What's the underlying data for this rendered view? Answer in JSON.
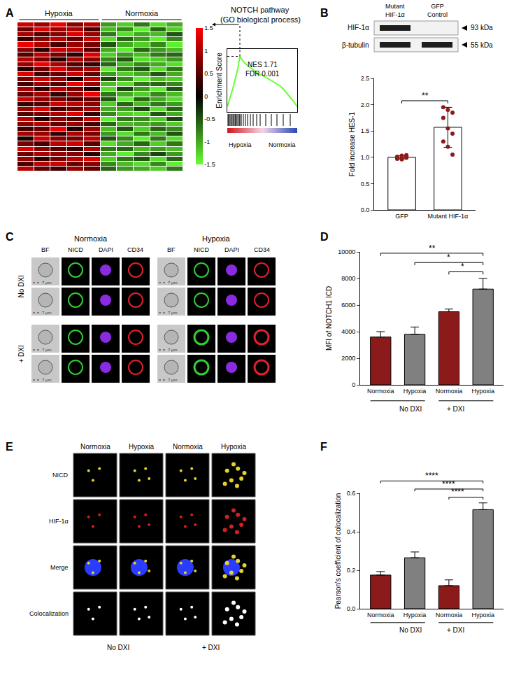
{
  "panel_labels": [
    "A",
    "B",
    "C",
    "D",
    "E",
    "F"
  ],
  "chart_data": [
    {
      "panel": "A",
      "type": "heatmap",
      "title": "NOTCH pathway",
      "subtitle": "(GO biological process)",
      "groups": [
        {
          "label": "Hypoxia",
          "count": 5
        },
        {
          "label": "Normoxia",
          "count": 5
        }
      ],
      "cells": [
        [
          1.2,
          0.9,
          1.4,
          0.8,
          1.1,
          -0.9,
          -1.2,
          -0.7,
          -1.3,
          -1.0
        ],
        [
          0.6,
          1.3,
          0.9,
          1.0,
          0.4,
          -1.1,
          -0.8,
          -1.4,
          -0.6,
          -1.2
        ],
        [
          1.0,
          0.5,
          0.8,
          1.3,
          0.9,
          -0.7,
          -1.3,
          -1.0,
          -1.1,
          -0.5
        ],
        [
          0.3,
          0.8,
          1.1,
          0.6,
          1.2,
          -1.3,
          -0.6,
          -0.9,
          -1.4,
          -0.8
        ],
        [
          1.4,
          1.0,
          0.4,
          0.9,
          0.7,
          -0.5,
          -1.0,
          -1.2,
          -0.8,
          -1.4
        ],
        [
          0.8,
          0.2,
          1.2,
          1.1,
          0.5,
          -1.0,
          -1.4,
          -0.6,
          -0.9,
          -1.1
        ],
        [
          0.5,
          1.1,
          0.7,
          0.3,
          1.3,
          -1.2,
          -0.9,
          -1.1,
          -0.7,
          -0.6
        ],
        [
          1.1,
          0.7,
          0.2,
          1.0,
          0.8,
          -0.8,
          -0.5,
          -1.3,
          -1.2,
          -0.9
        ],
        [
          0.9,
          1.4,
          1.0,
          0.5,
          0.3,
          -0.6,
          -1.1,
          -0.8,
          -1.0,
          -1.3
        ],
        [
          0.2,
          0.6,
          1.3,
          0.8,
          1.0,
          -1.4,
          -0.7,
          -0.5,
          -1.3,
          -0.7
        ],
        [
          1.3,
          0.4,
          0.6,
          1.2,
          0.6,
          -0.9,
          -1.2,
          -1.0,
          -0.5,
          -1.0
        ],
        [
          0.7,
          1.2,
          0.9,
          0.1,
          1.1,
          -0.4,
          -0.8,
          -1.4,
          -1.1,
          -1.2
        ],
        [
          0.4,
          0.9,
          0.5,
          1.4,
          0.9,
          -1.1,
          -1.3,
          -0.7,
          -0.6,
          -0.8
        ],
        [
          1.0,
          0.3,
          1.1,
          0.7,
          0.2,
          -1.3,
          -0.4,
          -0.9,
          -1.4,
          -0.5
        ],
        [
          0.6,
          1.0,
          0.3,
          0.9,
          1.4,
          -0.7,
          -1.0,
          -1.2,
          -0.8,
          -1.1
        ],
        [
          1.2,
          0.8,
          0.7,
          0.4,
          0.6,
          -0.5,
          -1.4,
          -0.6,
          -1.0,
          -1.3
        ],
        [
          0.3,
          0.5,
          1.2,
          1.1,
          0.8,
          -1.2,
          -0.6,
          -1.1,
          -0.7,
          -0.9
        ],
        [
          0.9,
          1.3,
          0.4,
          0.6,
          1.0,
          -1.0,
          -0.9,
          -0.4,
          -1.3,
          -0.6
        ],
        [
          0.5,
          0.7,
          1.0,
          1.3,
          0.3,
          -0.8,
          -1.2,
          -1.3,
          -0.5,
          -1.0
        ],
        [
          1.1,
          0.2,
          0.8,
          0.5,
          1.2,
          -1.4,
          -0.7,
          -0.8,
          -1.2,
          -0.4
        ],
        [
          0.8,
          1.1,
          0.6,
          0.9,
          0.4,
          -0.6,
          -1.1,
          -1.0,
          -0.9,
          -1.2
        ],
        [
          0.4,
          0.6,
          1.4,
          0.2,
          0.9,
          -1.1,
          -0.5,
          -1.2,
          -0.6,
          -0.8
        ],
        [
          1.0,
          0.9,
          0.3,
          1.0,
          0.7,
          -0.9,
          -1.3,
          -0.7,
          -1.1,
          -0.5
        ],
        [
          0.2,
          1.2,
          0.8,
          0.7,
          1.1,
          -0.5,
          -0.8,
          -1.4,
          -0.7,
          -1.3
        ],
        [
          0.7,
          0.4,
          1.1,
          1.2,
          0.5,
          -1.3,
          -1.0,
          -0.6,
          -1.2,
          -0.7
        ],
        [
          1.3,
          0.8,
          0.5,
          0.3,
          1.0,
          -0.7,
          -0.6,
          -1.1,
          -0.9,
          -1.1
        ],
        [
          0.6,
          1.0,
          0.9,
          0.8,
          0.2,
          -1.0,
          -1.4,
          -0.8,
          -0.4,
          -0.9
        ],
        [
          0.9,
          0.3,
          0.7,
          1.1,
          1.3,
          -1.2,
          -0.7,
          -0.5,
          -1.3,
          -0.6
        ],
        [
          0.4,
          1.1,
          1.2,
          0.6,
          0.8,
          -0.8,
          -1.1,
          -1.3,
          -0.8,
          -1.4
        ],
        [
          1.1,
          0.6,
          0.4,
          0.9,
          0.6,
          -0.6,
          -0.9,
          -1.0,
          -1.2,
          -0.7
        ]
      ],
      "colorbar": {
        "range": [
          -1.5,
          1.5
        ],
        "ticks": [
          1.5,
          1,
          0.5,
          0,
          -0.5,
          -1,
          -1.5
        ],
        "colors": [
          "#66ff33",
          "#000000",
          "#ff0000"
        ]
      }
    },
    {
      "panel": "A",
      "type": "line",
      "ylabel": "Enrichment Score",
      "x": [
        0,
        3,
        6,
        9,
        12,
        15,
        18,
        22,
        26,
        30,
        35,
        40,
        45,
        50,
        55,
        60,
        65,
        70,
        75,
        80,
        85,
        90,
        95,
        100
      ],
      "values": [
        0,
        0.06,
        0.13,
        0.2,
        0.28,
        0.36,
        0.48,
        0.44,
        0.41,
        0.39,
        0.36,
        0.34,
        0.31,
        0.3,
        0.28,
        0.26,
        0.24,
        0.22,
        0.2,
        0.17,
        0.13,
        0.09,
        0.05,
        0
      ],
      "color": "#66ff33",
      "xlim": [
        0,
        100
      ],
      "ylim": [
        -0.05,
        0.55
      ],
      "tick_labels": false,
      "annotations": [
        "NES 1.71",
        "FDR 0.001"
      ],
      "hits": [
        1,
        2,
        3,
        5,
        6,
        8,
        9,
        11,
        12,
        13,
        15,
        17,
        18,
        20,
        23,
        26,
        29,
        33,
        37,
        42,
        47,
        55,
        63,
        71,
        80,
        90
      ],
      "xlabels": [
        "Hypoxia",
        "Normoxia"
      ]
    },
    {
      "panel": "B",
      "type": "bar",
      "categories": [
        "GFP",
        "Mutant HIF-1α"
      ],
      "values": [
        1.0,
        1.57
      ],
      "error": [
        0.03,
        0.38
      ],
      "points": {
        "values": [
          [
            1.0,
            0.98,
            1.02,
            0.97,
            1.03,
            0.99,
            1.01,
            0.96,
            1.04
          ],
          [
            1.95,
            1.9,
            1.85,
            1.75,
            1.55,
            1.45,
            1.3,
            1.2,
            1.05
          ]
        ],
        "color": "#8b1a1a",
        "marker": "circle"
      },
      "color": "#ffffff",
      "ylabel": "Fold increase HES-1",
      "ylim": [
        0,
        2.5
      ],
      "yticks": [
        {
          "value": 0,
          "label": "0.0"
        },
        0.5,
        {
          "value": 1,
          "label": "1.0"
        },
        1.5,
        {
          "value": 2,
          "label": "2.0"
        },
        2.5
      ],
      "grid": false,
      "comparisons": [
        {
          "from": 0,
          "to": 1,
          "label": "**"
        }
      ]
    },
    {
      "panel": "D",
      "type": "bar",
      "categories": [
        "Normoxia",
        "Hypoxia",
        "Normoxia",
        "Hypoxia"
      ],
      "groups": [
        {
          "label": "No DXI",
          "count": 2
        },
        {
          "label": "+ DXI",
          "count": 2
        }
      ],
      "values": [
        3600,
        3800,
        5500,
        7200
      ],
      "error": [
        400,
        550,
        200,
        800
      ],
      "colors": [
        "#8b1a1a",
        "#808080",
        "#8b1a1a",
        "#808080"
      ],
      "ylabel": "MFI of NOTCH1 ICD",
      "ylim": [
        0,
        10000
      ],
      "yticks": [
        0,
        2000,
        4000,
        6000,
        8000,
        10000
      ],
      "grid": false,
      "comparisons": [
        {
          "from": 2,
          "to": 3,
          "label": "*"
        },
        {
          "from": 1,
          "to": 3,
          "label": "*"
        },
        {
          "from": 0,
          "to": 3,
          "label": "**"
        }
      ]
    },
    {
      "panel": "F",
      "type": "bar",
      "categories": [
        "Normoxia",
        "Hypoxia",
        "Normoxia",
        "Hypoxia"
      ],
      "groups": [
        {
          "label": "No DXI",
          "count": 2
        },
        {
          "label": "+ DXI",
          "count": 2
        }
      ],
      "values": [
        0.175,
        0.265,
        0.12,
        0.515
      ],
      "error": [
        0.018,
        0.03,
        0.03,
        0.035
      ],
      "colors": [
        "#8b1a1a",
        "#808080",
        "#8b1a1a",
        "#808080"
      ],
      "ylabel": "Pearson's coefficient of colocalization",
      "ylim": [
        0,
        0.6
      ],
      "yticks": [
        {
          "value": 0,
          "label": "0.0"
        },
        0.2,
        0.4,
        0.6
      ],
      "grid": false,
      "comparisons": [
        {
          "from": 2,
          "to": 3,
          "label": "****"
        },
        {
          "from": 1,
          "to": 3,
          "label": "****"
        },
        {
          "from": 0,
          "to": 3,
          "label": "****"
        }
      ]
    }
  ],
  "blot": {
    "panel": "B",
    "lanes": [
      [
        "Mutant",
        "HIF-1α"
      ],
      [
        "GFP",
        "Control"
      ]
    ],
    "bands": [
      {
        "label": "HIF-1α",
        "size": "93 kDa",
        "present": [
          true,
          false
        ]
      },
      {
        "label": "β-tubulin",
        "size": "55 kDa",
        "present": [
          true,
          true
        ]
      }
    ]
  },
  "micrographs_C": {
    "panel": "C",
    "conditions": [
      "Normoxia",
      "Hypoxia"
    ],
    "channels": [
      "BF",
      "NICD",
      "DAPI",
      "CD34"
    ],
    "colors": [
      "#c8c8c8",
      "#33cc33",
      "#8a2be2",
      "#e0202a"
    ],
    "groups": [
      {
        "label": "No DXI",
        "count": 2
      },
      {
        "label": "+ DXI",
        "count": 2
      }
    ],
    "scale_bar": "7 μm"
  },
  "micrographs_E": {
    "panel": "E",
    "columns": [
      "Normoxia",
      "Hypoxia",
      "Normoxia",
      "Hypoxia"
    ],
    "rows": [
      "NICD",
      "HIF-1α",
      "Merge",
      "Colocalization"
    ],
    "colors": [
      "#e6d22a",
      "#d42020",
      "#2a3cff",
      "#ffffff"
    ],
    "groups": [
      {
        "label": "No DXI",
        "count": 2
      },
      {
        "label": "+ DXI",
        "count": 2
      }
    ]
  }
}
